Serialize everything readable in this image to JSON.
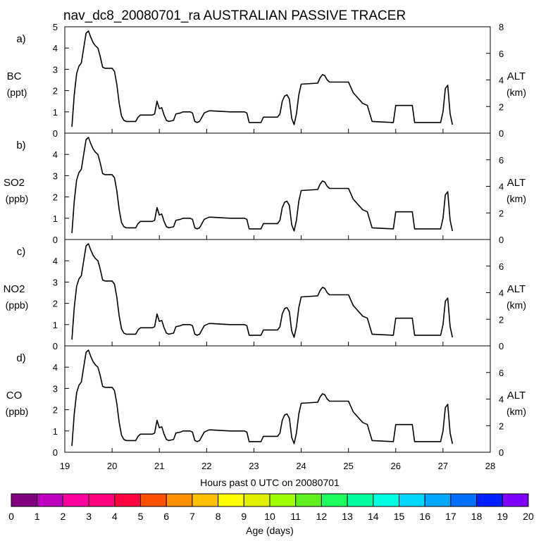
{
  "title": "nav_dc8_20080701_ra AUSTRALIAN PASSIVE TRACER",
  "xlabel": "Hours past 0 UTC on 20080701",
  "colorbar": {
    "label": "Age (days)",
    "ticks": [
      "0",
      "1",
      "2",
      "3",
      "4",
      "5",
      "6",
      "7",
      "8",
      "9",
      "10",
      "11",
      "12",
      "13",
      "14",
      "15",
      "16",
      "17",
      "18",
      "19",
      "20"
    ],
    "colors": [
      "#800080",
      "#c000c0",
      "#ff00a0",
      "#ff0080",
      "#ff0040",
      "#ff5000",
      "#ff9000",
      "#ffc000",
      "#ffff00",
      "#e0f000",
      "#a0ff00",
      "#60f020",
      "#20ff60",
      "#00ffa0",
      "#00ffe0",
      "#00d8ff",
      "#00a8ff",
      "#0070ff",
      "#0020ff",
      "#8000ff"
    ]
  },
  "chart_data": [
    {
      "type": "line",
      "panel": "a)",
      "ylabel_left": [
        "BC",
        "(ppt)"
      ],
      "ylabel_right": [
        "ALT",
        "(km)"
      ],
      "xlim": [
        19,
        28
      ],
      "ylim_left": [
        0,
        5
      ],
      "ylim_right": [
        0,
        8
      ],
      "xticks": [
        "19",
        "20",
        "21",
        "22",
        "23",
        "24",
        "25",
        "26",
        "27",
        "28"
      ],
      "yticks_left": [
        "0",
        "1",
        "2",
        "3",
        "4",
        "5"
      ],
      "yticks_right": [
        "0",
        "2",
        "4",
        "6",
        "8"
      ],
      "series": [
        {
          "axis": "left",
          "x": [
            19.15,
            19.2,
            19.25,
            19.3,
            19.35,
            19.4,
            19.45,
            19.5,
            19.55,
            19.6,
            19.65,
            19.7,
            19.75,
            19.8,
            19.85,
            19.9,
            19.95,
            20.0,
            20.05,
            20.1,
            20.15,
            20.2,
            20.25,
            20.3,
            20.5,
            20.55,
            20.6,
            20.85,
            20.9,
            20.95,
            21.0,
            21.05,
            21.1,
            21.15,
            21.2,
            21.3,
            21.35,
            21.45,
            21.5,
            21.6,
            21.65,
            21.7,
            21.75,
            21.8,
            21.85,
            21.95,
            22.0,
            22.05,
            22.1,
            22.5,
            22.8,
            22.85,
            22.9,
            23.15,
            23.2,
            23.5,
            23.55,
            23.6,
            23.65,
            23.7,
            23.75,
            23.8,
            23.85,
            23.9,
            23.95,
            24.0,
            24.35,
            24.4,
            24.45,
            24.5,
            24.55,
            24.6,
            25.0,
            25.1,
            25.3,
            25.4,
            25.5,
            25.95,
            26.0,
            26.35,
            26.4,
            26.95,
            27.0,
            27.05,
            27.1,
            27.15,
            27.2
          ],
          "y": [
            0.3,
            1.8,
            2.8,
            3.15,
            3.3,
            4.0,
            4.7,
            4.8,
            4.5,
            4.25,
            4.1,
            4.0,
            3.6,
            3.1,
            3.05,
            3.05,
            3.05,
            3.05,
            2.9,
            2.3,
            1.4,
            0.8,
            0.6,
            0.55,
            0.55,
            0.75,
            0.85,
            0.85,
            0.9,
            1.5,
            1.15,
            1.2,
            0.85,
            0.6,
            0.55,
            0.6,
            0.9,
            0.95,
            1.0,
            1.0,
            1.0,
            0.95,
            0.55,
            0.5,
            0.55,
            0.95,
            1.0,
            1.05,
            1.05,
            1.0,
            1.0,
            0.95,
            0.5,
            0.5,
            0.75,
            0.75,
            0.9,
            1.5,
            1.75,
            1.8,
            1.6,
            0.7,
            0.4,
            0.9,
            1.8,
            2.3,
            2.35,
            2.6,
            2.75,
            2.7,
            2.5,
            2.4,
            2.4,
            1.9,
            1.4,
            1.3,
            0.55,
            0.5,
            1.3,
            1.3,
            0.5,
            0.5,
            1.0,
            2.1,
            2.25,
            0.9,
            0.4
          ]
        }
      ]
    },
    {
      "type": "line",
      "panel": "b)",
      "ylabel_left": [
        "SO2",
        "(ppb)"
      ],
      "ylabel_right": [
        "ALT",
        "(km)"
      ],
      "xlim": [
        19,
        28
      ],
      "ylim_left": [
        0,
        5
      ],
      "ylim_right": [
        0,
        8
      ],
      "xticks": [
        "19",
        "20",
        "21",
        "22",
        "23",
        "24",
        "25",
        "26",
        "27",
        "28"
      ],
      "yticks_left": [
        "0",
        "1",
        "2",
        "3",
        "4"
      ],
      "yticks_right": [
        "0",
        "2",
        "4",
        "6"
      ],
      "series": [
        {
          "axis": "left",
          "x": [
            19.15,
            19.2,
            19.25,
            19.3,
            19.35,
            19.4,
            19.45,
            19.5,
            19.55,
            19.6,
            19.65,
            19.7,
            19.75,
            19.8,
            19.85,
            19.9,
            19.95,
            20.0,
            20.05,
            20.1,
            20.15,
            20.2,
            20.25,
            20.3,
            20.5,
            20.55,
            20.6,
            20.85,
            20.9,
            20.95,
            21.0,
            21.05,
            21.1,
            21.15,
            21.2,
            21.3,
            21.35,
            21.45,
            21.5,
            21.6,
            21.65,
            21.7,
            21.75,
            21.8,
            21.85,
            21.95,
            22.0,
            22.05,
            22.1,
            22.5,
            22.8,
            22.85,
            22.9,
            23.15,
            23.2,
            23.5,
            23.55,
            23.6,
            23.65,
            23.7,
            23.75,
            23.8,
            23.85,
            23.9,
            23.95,
            24.0,
            24.35,
            24.4,
            24.45,
            24.5,
            24.55,
            24.6,
            25.0,
            25.1,
            25.3,
            25.4,
            25.5,
            25.95,
            26.0,
            26.35,
            26.4,
            26.95,
            27.0,
            27.05,
            27.1,
            27.15,
            27.2
          ],
          "y": [
            0.3,
            1.8,
            2.8,
            3.15,
            3.3,
            4.0,
            4.7,
            4.8,
            4.5,
            4.25,
            4.1,
            4.0,
            3.6,
            3.1,
            3.05,
            3.05,
            3.05,
            3.05,
            2.9,
            2.3,
            1.4,
            0.8,
            0.6,
            0.55,
            0.55,
            0.75,
            0.85,
            0.85,
            0.9,
            1.5,
            1.15,
            1.2,
            0.85,
            0.6,
            0.55,
            0.6,
            0.9,
            0.95,
            1.0,
            1.0,
            1.0,
            0.95,
            0.55,
            0.5,
            0.55,
            0.95,
            1.0,
            1.05,
            1.05,
            1.0,
            1.0,
            0.95,
            0.5,
            0.5,
            0.75,
            0.75,
            0.9,
            1.5,
            1.75,
            1.8,
            1.6,
            0.7,
            0.4,
            0.9,
            1.8,
            2.3,
            2.35,
            2.6,
            2.75,
            2.7,
            2.5,
            2.4,
            2.4,
            1.9,
            1.4,
            1.3,
            0.55,
            0.5,
            1.3,
            1.3,
            0.5,
            0.5,
            1.0,
            2.1,
            2.25,
            0.9,
            0.4
          ]
        }
      ]
    },
    {
      "type": "line",
      "panel": "c)",
      "ylabel_left": [
        "NO2",
        "(ppb)"
      ],
      "ylabel_right": [
        "ALT",
        "(km)"
      ],
      "xlim": [
        19,
        28
      ],
      "ylim_left": [
        0,
        5
      ],
      "ylim_right": [
        0,
        8
      ],
      "xticks": [
        "19",
        "20",
        "21",
        "22",
        "23",
        "24",
        "25",
        "26",
        "27",
        "28"
      ],
      "yticks_left": [
        "0",
        "1",
        "2",
        "3",
        "4"
      ],
      "yticks_right": [
        "0",
        "2",
        "4",
        "6"
      ],
      "series": [
        {
          "axis": "left",
          "x": [
            19.15,
            19.2,
            19.25,
            19.3,
            19.35,
            19.4,
            19.45,
            19.5,
            19.55,
            19.6,
            19.65,
            19.7,
            19.75,
            19.8,
            19.85,
            19.9,
            19.95,
            20.0,
            20.05,
            20.1,
            20.15,
            20.2,
            20.25,
            20.3,
            20.5,
            20.55,
            20.6,
            20.85,
            20.9,
            20.95,
            21.0,
            21.05,
            21.1,
            21.15,
            21.2,
            21.3,
            21.35,
            21.45,
            21.5,
            21.6,
            21.65,
            21.7,
            21.75,
            21.8,
            21.85,
            21.95,
            22.0,
            22.05,
            22.1,
            22.5,
            22.8,
            22.85,
            22.9,
            23.15,
            23.2,
            23.5,
            23.55,
            23.6,
            23.65,
            23.7,
            23.75,
            23.8,
            23.85,
            23.9,
            23.95,
            24.0,
            24.35,
            24.4,
            24.45,
            24.5,
            24.55,
            24.6,
            25.0,
            25.1,
            25.3,
            25.4,
            25.5,
            25.95,
            26.0,
            26.35,
            26.4,
            26.95,
            27.0,
            27.05,
            27.1,
            27.15,
            27.2
          ],
          "y": [
            0.3,
            1.8,
            2.8,
            3.15,
            3.3,
            4.0,
            4.7,
            4.8,
            4.5,
            4.25,
            4.1,
            4.0,
            3.6,
            3.1,
            3.05,
            3.05,
            3.05,
            3.05,
            2.9,
            2.3,
            1.4,
            0.8,
            0.6,
            0.55,
            0.55,
            0.75,
            0.85,
            0.85,
            0.9,
            1.5,
            1.15,
            1.2,
            0.85,
            0.6,
            0.55,
            0.6,
            0.9,
            0.95,
            1.0,
            1.0,
            1.0,
            0.95,
            0.55,
            0.5,
            0.55,
            0.95,
            1.0,
            1.05,
            1.05,
            1.0,
            1.0,
            0.95,
            0.5,
            0.5,
            0.75,
            0.75,
            0.9,
            1.5,
            1.75,
            1.8,
            1.6,
            0.7,
            0.4,
            0.9,
            1.8,
            2.3,
            2.35,
            2.6,
            2.75,
            2.7,
            2.5,
            2.4,
            2.4,
            1.9,
            1.4,
            1.3,
            0.55,
            0.5,
            1.3,
            1.3,
            0.5,
            0.5,
            1.0,
            2.1,
            2.25,
            0.9,
            0.4
          ]
        }
      ]
    },
    {
      "type": "line",
      "panel": "d)",
      "ylabel_left": [
        "CO",
        "(ppb)"
      ],
      "ylabel_right": [
        "ALT",
        "(km)"
      ],
      "xlim": [
        19,
        28
      ],
      "ylim_left": [
        0,
        5
      ],
      "ylim_right": [
        0,
        8
      ],
      "xticks": [
        "19",
        "20",
        "21",
        "22",
        "23",
        "24",
        "25",
        "26",
        "27",
        "28"
      ],
      "yticks_left": [
        "0",
        "1",
        "2",
        "3",
        "4"
      ],
      "yticks_right": [
        "0",
        "2",
        "4",
        "6"
      ],
      "series": [
        {
          "axis": "left",
          "x": [
            19.15,
            19.2,
            19.25,
            19.3,
            19.35,
            19.4,
            19.45,
            19.5,
            19.55,
            19.6,
            19.65,
            19.7,
            19.75,
            19.8,
            19.85,
            19.9,
            19.95,
            20.0,
            20.05,
            20.1,
            20.15,
            20.2,
            20.25,
            20.3,
            20.5,
            20.55,
            20.6,
            20.85,
            20.9,
            20.95,
            21.0,
            21.05,
            21.1,
            21.15,
            21.2,
            21.3,
            21.35,
            21.45,
            21.5,
            21.6,
            21.65,
            21.7,
            21.75,
            21.8,
            21.85,
            21.95,
            22.0,
            22.05,
            22.1,
            22.5,
            22.8,
            22.85,
            22.9,
            23.15,
            23.2,
            23.5,
            23.55,
            23.6,
            23.65,
            23.7,
            23.75,
            23.8,
            23.85,
            23.9,
            23.95,
            24.0,
            24.35,
            24.4,
            24.45,
            24.5,
            24.55,
            24.6,
            25.0,
            25.1,
            25.3,
            25.4,
            25.5,
            25.95,
            26.0,
            26.35,
            26.4,
            26.95,
            27.0,
            27.05,
            27.1,
            27.15,
            27.2
          ],
          "y": [
            0.3,
            1.8,
            2.8,
            3.15,
            3.3,
            4.0,
            4.7,
            4.8,
            4.5,
            4.25,
            4.1,
            4.0,
            3.6,
            3.1,
            3.05,
            3.05,
            3.05,
            3.05,
            2.9,
            2.3,
            1.4,
            0.8,
            0.6,
            0.55,
            0.55,
            0.75,
            0.85,
            0.85,
            0.9,
            1.5,
            1.15,
            1.2,
            0.85,
            0.6,
            0.55,
            0.6,
            0.9,
            0.95,
            1.0,
            1.0,
            1.0,
            0.95,
            0.55,
            0.5,
            0.55,
            0.95,
            1.0,
            1.05,
            1.05,
            1.0,
            1.0,
            0.95,
            0.5,
            0.5,
            0.75,
            0.75,
            0.9,
            1.5,
            1.75,
            1.8,
            1.6,
            0.7,
            0.4,
            0.9,
            1.8,
            2.3,
            2.35,
            2.6,
            2.75,
            2.7,
            2.5,
            2.4,
            2.4,
            1.9,
            1.4,
            1.3,
            0.55,
            0.5,
            1.3,
            1.3,
            0.5,
            0.5,
            1.0,
            2.1,
            2.25,
            0.9,
            0.4
          ]
        }
      ]
    }
  ]
}
